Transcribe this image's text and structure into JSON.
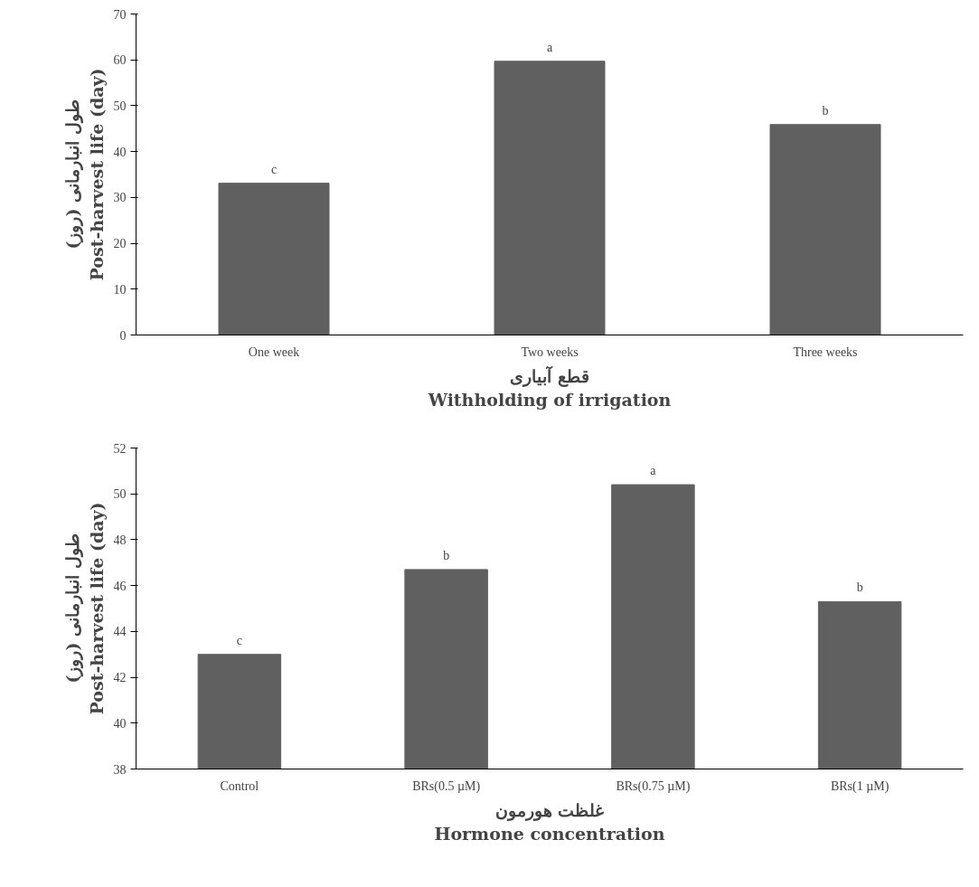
{
  "chart_data": [
    {
      "type": "bar",
      "categories": [
        "One week",
        "Two weeks",
        "Three weeks"
      ],
      "values": [
        33.1,
        59.7,
        45.9
      ],
      "color": "#606060",
      "xlabel": "قطع آبیاری\nWithholding of irrigation",
      "ylabel": "طول انبارمانی (روز)\nPost-harvest life (day)",
      "ylim": [
        0,
        70
      ],
      "yticks": [
        0,
        10,
        20,
        30,
        40,
        50,
        60,
        70
      ],
      "grid": false,
      "annotations": [
        {
          "text": "c",
          "x": "One week",
          "y": 33.1
        },
        {
          "text": "a",
          "x": "Two weeks",
          "y": 59.7
        },
        {
          "text": "b",
          "x": "Three weeks",
          "y": 45.9
        }
      ]
    },
    {
      "type": "bar",
      "categories": [
        "Control",
        "BRs(0.5 µM)",
        "BRs(0.75 µM)",
        "BRs(1 µM)"
      ],
      "values": [
        43.0,
        46.7,
        50.4,
        45.3
      ],
      "color": "#606060",
      "xlabel": "غلظت هورمون\nHormone concentration",
      "ylabel": "طول انبارمانی (روز)\nPost-harvest life (day)",
      "ylim": [
        38,
        52
      ],
      "yticks": [
        38,
        40,
        42,
        44,
        46,
        48,
        50,
        52
      ],
      "grid": false,
      "annotations": [
        {
          "text": "c",
          "x": "Control",
          "y": 43.0
        },
        {
          "text": "b",
          "x": "BRs(0.5 µM)",
          "y": 46.7
        },
        {
          "text": "a",
          "x": "BRs(0.75 µM)",
          "y": 50.4
        },
        {
          "text": "b",
          "x": "BRs(1 µM)",
          "y": 45.3
        }
      ]
    }
  ]
}
